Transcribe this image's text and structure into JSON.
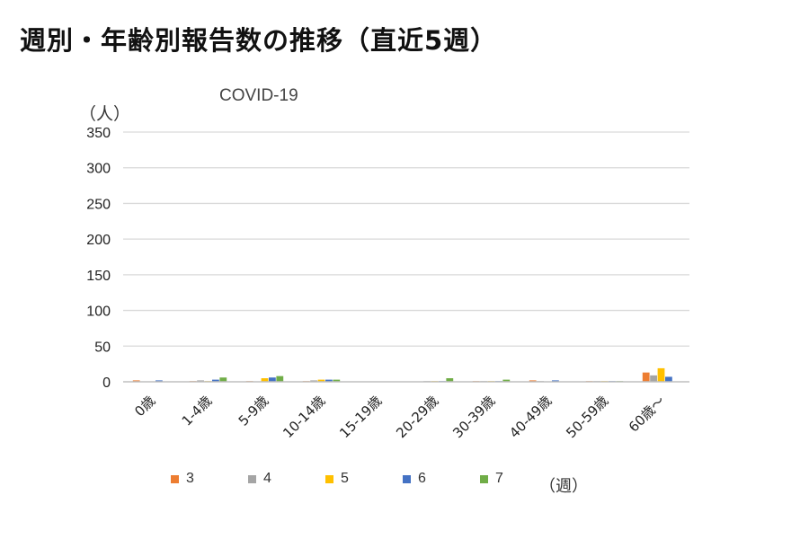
{
  "page_title": "週別・年齢別報告数の推移（直近5週）",
  "chart_data": {
    "type": "bar",
    "title": "COVID-19",
    "ylabel": "（人）",
    "xlabel": "（週）",
    "ylim": [
      0,
      350
    ],
    "yticks": [
      0,
      50,
      100,
      150,
      200,
      250,
      300,
      350
    ],
    "grid": true,
    "legend_position": "bottom",
    "categories": [
      "0歳",
      "1-4歳",
      "5-9歳",
      "10-14歳",
      "15-19歳",
      "20-29歳",
      "30-39歳",
      "40-49歳",
      "50-59歳",
      "60歳～"
    ],
    "series": [
      {
        "name": "3",
        "color": "#ED7D31",
        "values": [
          2,
          1,
          1,
          1,
          0,
          0,
          1,
          2,
          1,
          13
        ]
      },
      {
        "name": "4",
        "color": "#A5A5A5",
        "values": [
          0,
          2,
          0,
          2,
          0,
          1,
          1,
          1,
          1,
          9
        ]
      },
      {
        "name": "5",
        "color": "#FFC000",
        "values": [
          0,
          1,
          5,
          3,
          0,
          1,
          1,
          0,
          1,
          19
        ]
      },
      {
        "name": "6",
        "color": "#4472C4",
        "values": [
          2,
          3,
          6,
          3,
          0,
          1,
          1,
          2,
          1,
          7
        ]
      },
      {
        "name": "7",
        "color": "#70AD47",
        "values": [
          0,
          6,
          8,
          3,
          0,
          5,
          3,
          0,
          1,
          0
        ]
      }
    ]
  }
}
